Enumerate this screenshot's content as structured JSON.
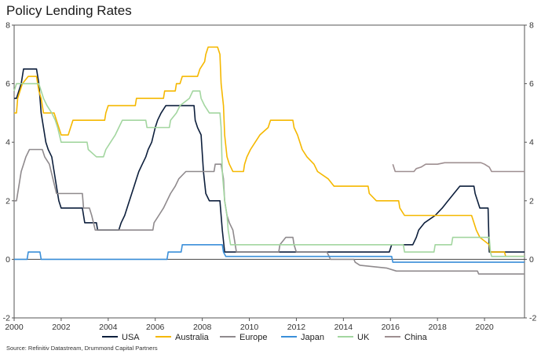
{
  "title": "Policy Lending Rates",
  "source": "Source: Refinitiv Datastream, Drummond Capital Partners",
  "chart_data": {
    "type": "line",
    "title": "Policy Lending Rates",
    "xlabel": "",
    "ylabel": "",
    "xlim": [
      2000,
      2021.7
    ],
    "ylim": [
      -2,
      8
    ],
    "x_ticks": [
      2000,
      2002,
      2004,
      2006,
      2008,
      2010,
      2012,
      2014,
      2016,
      2018,
      2020
    ],
    "y_ticks": [
      -2,
      0,
      2,
      4,
      6,
      8
    ],
    "grid": false,
    "legend_position": "bottom",
    "series": [
      {
        "name": "USA",
        "color": "#0d1f3c",
        "points": [
          [
            2000.0,
            5.5
          ],
          [
            2000.1,
            5.5
          ],
          [
            2000.2,
            5.75
          ],
          [
            2000.3,
            6.0
          ],
          [
            2000.4,
            6.5
          ],
          [
            2000.95,
            6.5
          ],
          [
            2001.05,
            6.0
          ],
          [
            2001.15,
            5.0
          ],
          [
            2001.25,
            4.5
          ],
          [
            2001.35,
            4.0
          ],
          [
            2001.45,
            3.75
          ],
          [
            2001.6,
            3.5
          ],
          [
            2001.7,
            3.0
          ],
          [
            2001.8,
            2.5
          ],
          [
            2001.9,
            2.0
          ],
          [
            2002.0,
            1.75
          ],
          [
            2002.9,
            1.75
          ],
          [
            2003.0,
            1.25
          ],
          [
            2003.5,
            1.25
          ],
          [
            2003.55,
            1.0
          ],
          [
            2004.45,
            1.0
          ],
          [
            2004.55,
            1.25
          ],
          [
            2004.7,
            1.5
          ],
          [
            2004.8,
            1.75
          ],
          [
            2004.9,
            2.0
          ],
          [
            2005.0,
            2.25
          ],
          [
            2005.1,
            2.5
          ],
          [
            2005.2,
            2.75
          ],
          [
            2005.3,
            3.0
          ],
          [
            2005.45,
            3.25
          ],
          [
            2005.6,
            3.5
          ],
          [
            2005.7,
            3.75
          ],
          [
            2005.85,
            4.0
          ],
          [
            2006.0,
            4.5
          ],
          [
            2006.1,
            4.75
          ],
          [
            2006.25,
            5.0
          ],
          [
            2006.45,
            5.25
          ],
          [
            2007.65,
            5.25
          ],
          [
            2007.7,
            4.75
          ],
          [
            2007.8,
            4.5
          ],
          [
            2007.95,
            4.25
          ],
          [
            2008.05,
            3.0
          ],
          [
            2008.15,
            2.25
          ],
          [
            2008.3,
            2.0
          ],
          [
            2008.75,
            2.0
          ],
          [
            2008.8,
            1.5
          ],
          [
            2008.85,
            1.0
          ],
          [
            2008.95,
            0.25
          ],
          [
            2015.95,
            0.25
          ],
          [
            2016.05,
            0.5
          ],
          [
            2016.95,
            0.5
          ],
          [
            2017.1,
            0.75
          ],
          [
            2017.2,
            1.0
          ],
          [
            2017.45,
            1.25
          ],
          [
            2017.9,
            1.5
          ],
          [
            2018.2,
            1.75
          ],
          [
            2018.45,
            2.0
          ],
          [
            2018.7,
            2.25
          ],
          [
            2018.95,
            2.5
          ],
          [
            2019.55,
            2.5
          ],
          [
            2019.6,
            2.25
          ],
          [
            2019.7,
            2.0
          ],
          [
            2019.8,
            1.75
          ],
          [
            2020.15,
            1.75
          ],
          [
            2020.2,
            0.25
          ],
          [
            2021.7,
            0.25
          ]
        ]
      },
      {
        "name": "Australia",
        "color": "#f5b800",
        "points": [
          [
            2000.0,
            5.0
          ],
          [
            2000.1,
            5.0
          ],
          [
            2000.15,
            5.5
          ],
          [
            2000.25,
            5.75
          ],
          [
            2000.35,
            6.0
          ],
          [
            2000.6,
            6.25
          ],
          [
            2000.95,
            6.25
          ],
          [
            2001.05,
            5.75
          ],
          [
            2001.15,
            5.5
          ],
          [
            2001.25,
            5.0
          ],
          [
            2001.7,
            5.0
          ],
          [
            2001.8,
            4.75
          ],
          [
            2001.9,
            4.5
          ],
          [
            2002.0,
            4.25
          ],
          [
            2002.3,
            4.25
          ],
          [
            2002.4,
            4.5
          ],
          [
            2002.5,
            4.75
          ],
          [
            2003.85,
            4.75
          ],
          [
            2003.9,
            5.0
          ],
          [
            2004.0,
            5.25
          ],
          [
            2005.15,
            5.25
          ],
          [
            2005.2,
            5.5
          ],
          [
            2006.35,
            5.5
          ],
          [
            2006.4,
            5.75
          ],
          [
            2006.85,
            5.75
          ],
          [
            2006.9,
            6.0
          ],
          [
            2007.05,
            6.0
          ],
          [
            2007.15,
            6.25
          ],
          [
            2007.8,
            6.25
          ],
          [
            2007.9,
            6.5
          ],
          [
            2008.1,
            6.75
          ],
          [
            2008.15,
            7.0
          ],
          [
            2008.25,
            7.25
          ],
          [
            2008.65,
            7.25
          ],
          [
            2008.75,
            7.0
          ],
          [
            2008.8,
            6.0
          ],
          [
            2008.9,
            5.25
          ],
          [
            2008.95,
            4.25
          ],
          [
            2009.05,
            3.5
          ],
          [
            2009.15,
            3.25
          ],
          [
            2009.3,
            3.0
          ],
          [
            2009.75,
            3.0
          ],
          [
            2009.8,
            3.25
          ],
          [
            2009.9,
            3.5
          ],
          [
            2010.05,
            3.75
          ],
          [
            2010.25,
            4.0
          ],
          [
            2010.45,
            4.25
          ],
          [
            2010.8,
            4.5
          ],
          [
            2010.9,
            4.75
          ],
          [
            2011.85,
            4.75
          ],
          [
            2011.9,
            4.5
          ],
          [
            2012.05,
            4.25
          ],
          [
            2012.25,
            3.75
          ],
          [
            2012.45,
            3.5
          ],
          [
            2012.75,
            3.25
          ],
          [
            2012.9,
            3.0
          ],
          [
            2013.35,
            2.75
          ],
          [
            2013.6,
            2.5
          ],
          [
            2015.05,
            2.5
          ],
          [
            2015.1,
            2.25
          ],
          [
            2015.4,
            2.0
          ],
          [
            2016.35,
            2.0
          ],
          [
            2016.4,
            1.75
          ],
          [
            2016.6,
            1.5
          ],
          [
            2019.45,
            1.5
          ],
          [
            2019.55,
            1.25
          ],
          [
            2019.65,
            1.0
          ],
          [
            2019.8,
            0.75
          ],
          [
            2020.2,
            0.5
          ],
          [
            2020.25,
            0.25
          ],
          [
            2020.85,
            0.25
          ],
          [
            2020.9,
            0.1
          ],
          [
            2021.7,
            0.1
          ]
        ]
      },
      {
        "name": "Europe",
        "color": "#8f8a8d",
        "points": [
          [
            2000.0,
            2.0
          ],
          [
            2000.1,
            2.0
          ],
          [
            2000.2,
            2.5
          ],
          [
            2000.3,
            3.0
          ],
          [
            2000.4,
            3.25
          ],
          [
            2000.5,
            3.5
          ],
          [
            2000.65,
            3.75
          ],
          [
            2000.8,
            3.75
          ],
          [
            2001.2,
            3.75
          ],
          [
            2001.3,
            3.5
          ],
          [
            2001.5,
            3.25
          ],
          [
            2001.65,
            2.75
          ],
          [
            2001.8,
            2.25
          ],
          [
            2002.9,
            2.25
          ],
          [
            2002.95,
            1.75
          ],
          [
            2003.2,
            1.75
          ],
          [
            2003.3,
            1.5
          ],
          [
            2003.45,
            1.0
          ],
          [
            2005.9,
            1.0
          ],
          [
            2005.95,
            1.25
          ],
          [
            2006.15,
            1.5
          ],
          [
            2006.35,
            1.75
          ],
          [
            2006.5,
            2.0
          ],
          [
            2006.65,
            2.25
          ],
          [
            2006.85,
            2.5
          ],
          [
            2007.0,
            2.75
          ],
          [
            2007.3,
            3.0
          ],
          [
            2008.5,
            3.0
          ],
          [
            2008.55,
            3.25
          ],
          [
            2008.8,
            3.25
          ],
          [
            2008.9,
            2.75
          ],
          [
            2008.95,
            2.0
          ],
          [
            2009.05,
            1.5
          ],
          [
            2009.15,
            1.25
          ],
          [
            2009.3,
            1.0
          ],
          [
            2009.45,
            0.25
          ],
          [
            2011.25,
            0.25
          ],
          [
            2011.3,
            0.5
          ],
          [
            2011.55,
            0.75
          ],
          [
            2011.85,
            0.75
          ],
          [
            2011.9,
            0.5
          ],
          [
            2012.0,
            0.25
          ],
          [
            2013.3,
            0.25
          ],
          [
            2013.45,
            0.0
          ],
          [
            2014.45,
            0.0
          ],
          [
            2014.5,
            -0.1
          ],
          [
            2014.7,
            -0.2
          ],
          [
            2015.85,
            -0.3
          ],
          [
            2016.25,
            -0.4
          ],
          [
            2019.7,
            -0.4
          ],
          [
            2019.75,
            -0.5
          ],
          [
            2021.7,
            -0.5
          ]
        ]
      },
      {
        "name": "Japan",
        "color": "#3a8fd9",
        "points": [
          [
            2000.0,
            0.0
          ],
          [
            2000.55,
            0.0
          ],
          [
            2000.6,
            0.25
          ],
          [
            2001.1,
            0.25
          ],
          [
            2001.15,
            0.0
          ],
          [
            2006.5,
            0.0
          ],
          [
            2006.55,
            0.25
          ],
          [
            2007.1,
            0.25
          ],
          [
            2007.15,
            0.5
          ],
          [
            2008.85,
            0.5
          ],
          [
            2008.9,
            0.25
          ],
          [
            2009.0,
            0.1
          ],
          [
            2016.05,
            0.1
          ],
          [
            2016.1,
            -0.1
          ],
          [
            2021.7,
            -0.1
          ]
        ]
      },
      {
        "name": "UK",
        "color": "#a3d6a0",
        "points": [
          [
            2000.0,
            5.75
          ],
          [
            2000.1,
            6.0
          ],
          [
            2001.05,
            6.0
          ],
          [
            2001.15,
            5.75
          ],
          [
            2001.25,
            5.5
          ],
          [
            2001.4,
            5.25
          ],
          [
            2001.6,
            5.0
          ],
          [
            2001.75,
            4.75
          ],
          [
            2001.85,
            4.5
          ],
          [
            2002.0,
            4.0
          ],
          [
            2003.1,
            4.0
          ],
          [
            2003.15,
            3.75
          ],
          [
            2003.5,
            3.5
          ],
          [
            2003.8,
            3.5
          ],
          [
            2003.9,
            3.75
          ],
          [
            2004.1,
            4.0
          ],
          [
            2004.3,
            4.25
          ],
          [
            2004.45,
            4.5
          ],
          [
            2004.6,
            4.75
          ],
          [
            2005.6,
            4.75
          ],
          [
            2005.65,
            4.5
          ],
          [
            2006.6,
            4.5
          ],
          [
            2006.65,
            4.75
          ],
          [
            2006.9,
            5.0
          ],
          [
            2007.05,
            5.25
          ],
          [
            2007.45,
            5.5
          ],
          [
            2007.6,
            5.75
          ],
          [
            2007.9,
            5.75
          ],
          [
            2007.95,
            5.5
          ],
          [
            2008.1,
            5.25
          ],
          [
            2008.3,
            5.0
          ],
          [
            2008.75,
            5.0
          ],
          [
            2008.8,
            4.5
          ],
          [
            2008.85,
            3.0
          ],
          [
            2008.95,
            2.0
          ],
          [
            2009.05,
            1.5
          ],
          [
            2009.1,
            1.0
          ],
          [
            2009.2,
            0.5
          ],
          [
            2016.55,
            0.5
          ],
          [
            2016.6,
            0.25
          ],
          [
            2017.85,
            0.25
          ],
          [
            2017.9,
            0.5
          ],
          [
            2018.6,
            0.5
          ],
          [
            2018.65,
            0.75
          ],
          [
            2020.2,
            0.75
          ],
          [
            2020.25,
            0.25
          ],
          [
            2020.3,
            0.1
          ],
          [
            2021.7,
            0.1
          ]
        ]
      },
      {
        "name": "China",
        "color": "#9e8f91",
        "points": [
          [
            2016.1,
            3.25
          ],
          [
            2016.2,
            3.0
          ],
          [
            2017.0,
            3.0
          ],
          [
            2017.1,
            3.1
          ],
          [
            2017.3,
            3.15
          ],
          [
            2017.5,
            3.25
          ],
          [
            2018.0,
            3.25
          ],
          [
            2018.3,
            3.3
          ],
          [
            2019.0,
            3.3
          ],
          [
            2019.5,
            3.3
          ],
          [
            2019.85,
            3.3
          ],
          [
            2020.0,
            3.25
          ],
          [
            2020.2,
            3.15
          ],
          [
            2020.3,
            3.0
          ],
          [
            2021.7,
            3.0
          ]
        ]
      }
    ]
  }
}
